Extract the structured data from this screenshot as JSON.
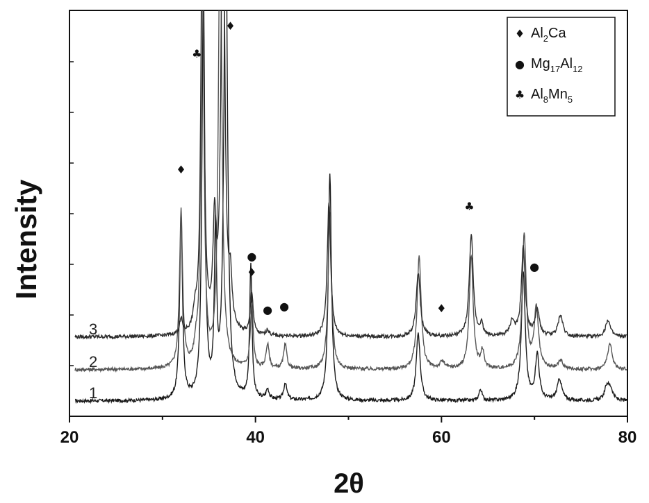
{
  "chart_data": {
    "type": "line",
    "xlabel": "2θ",
    "ylabel": "Intensity",
    "xlim": [
      20,
      80
    ],
    "xticks": [
      "20",
      "40",
      "60",
      "80"
    ],
    "yticks_labeled": false,
    "grid": false,
    "legend_position": "top-right",
    "legend": [
      {
        "symbol": "♦",
        "base": "Al",
        "sub1": "2",
        "mid": "Ca",
        "sub2": ""
      },
      {
        "symbol": "●",
        "base": "Mg",
        "sub1": "17",
        "mid": "Al",
        "sub2": "12"
      },
      {
        "symbol": "♣",
        "base": "Al",
        "sub1": "8",
        "mid": "Mn",
        "sub2": "5"
      }
    ],
    "series": [
      {
        "name": "1",
        "color": "#1a1a1a",
        "baseline": 0.0,
        "noise": 0.012,
        "peaks": [
          [
            32.0,
            1.3,
            0.18
          ],
          [
            34.4,
            2.9,
            0.18
          ],
          [
            35.7,
            1.1,
            0.15
          ],
          [
            36.8,
            3.6,
            0.22
          ],
          [
            39.5,
            0.95,
            0.15
          ],
          [
            41.3,
            0.07,
            0.2
          ],
          [
            43.2,
            0.12,
            0.2
          ],
          [
            48.0,
            1.6,
            0.2
          ],
          [
            57.5,
            0.48,
            0.25
          ],
          [
            64.2,
            0.08,
            0.2
          ],
          [
            68.8,
            0.9,
            0.25
          ],
          [
            70.3,
            0.32,
            0.25
          ],
          [
            72.7,
            0.15,
            0.3
          ],
          [
            77.8,
            0.1,
            0.3
          ],
          [
            78.2,
            0.07,
            0.3
          ]
        ]
      },
      {
        "name": "2",
        "color": "#555555",
        "baseline": 0.22,
        "noise": 0.012,
        "peaks": [
          [
            32.0,
            1.1,
            0.2
          ],
          [
            33.6,
            0.1,
            0.2
          ],
          [
            34.3,
            3.1,
            0.18
          ],
          [
            36.2,
            3.3,
            0.22
          ],
          [
            39.6,
            0.45,
            0.18
          ],
          [
            41.3,
            0.17,
            0.2
          ],
          [
            43.2,
            0.17,
            0.2
          ],
          [
            48.0,
            1.1,
            0.22
          ],
          [
            57.6,
            0.8,
            0.26
          ],
          [
            60.1,
            0.05,
            0.3
          ],
          [
            63.2,
            0.8,
            0.25
          ],
          [
            64.4,
            0.12,
            0.2
          ],
          [
            68.9,
            0.95,
            0.25
          ],
          [
            70.2,
            0.42,
            0.28
          ],
          [
            72.8,
            0.06,
            0.3
          ],
          [
            78.1,
            0.18,
            0.3
          ]
        ]
      },
      {
        "name": "3",
        "color": "#2e2e2e",
        "baseline": 0.45,
        "noise": 0.013,
        "peaks": [
          [
            32.0,
            0.1,
            0.2
          ],
          [
            33.5,
            0.12,
            0.2
          ],
          [
            34.3,
            3.4,
            0.18
          ],
          [
            35.6,
            0.7,
            0.2
          ],
          [
            36.5,
            3.6,
            0.22
          ],
          [
            37.3,
            0.3,
            0.2
          ],
          [
            39.6,
            0.3,
            0.18
          ],
          [
            41.3,
            0.04,
            0.2
          ],
          [
            47.9,
            0.95,
            0.22
          ],
          [
            57.5,
            0.45,
            0.26
          ],
          [
            63.2,
            0.72,
            0.25
          ],
          [
            64.3,
            0.08,
            0.2
          ],
          [
            67.6,
            0.1,
            0.3
          ],
          [
            68.8,
            0.62,
            0.25
          ],
          [
            70.3,
            0.18,
            0.28
          ],
          [
            72.8,
            0.15,
            0.3
          ],
          [
            77.9,
            0.12,
            0.3
          ]
        ]
      }
    ],
    "phase_markers": [
      {
        "x": 32.0,
        "symbol": "♦"
      },
      {
        "x": 33.7,
        "symbol": "♣"
      },
      {
        "x": 37.3,
        "symbol": "♦"
      },
      {
        "x": 39.6,
        "symbol": "●"
      },
      {
        "x": 39.6,
        "symbol": "♦"
      },
      {
        "x": 41.3,
        "symbol": "●"
      },
      {
        "x": 43.1,
        "symbol": "●"
      },
      {
        "x": 60.0,
        "symbol": "♦"
      },
      {
        "x": 63.0,
        "symbol": "♣"
      },
      {
        "x": 70.0,
        "symbol": "●"
      }
    ]
  }
}
